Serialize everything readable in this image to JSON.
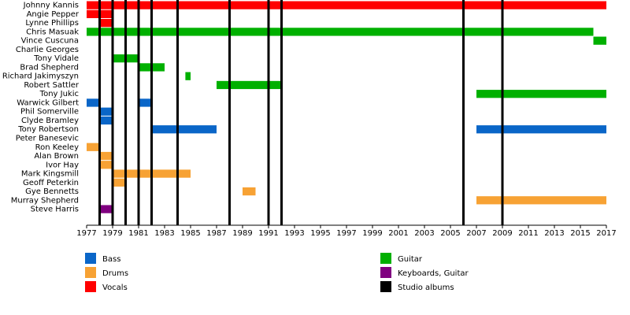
{
  "chart_data": {
    "type": "timeline",
    "categories": [
      "Johnny Kannis",
      "Angie Pepper",
      "Lynne Phillips",
      "Chris Masuak",
      "Vince Cuscuna",
      "Charlie Georges",
      "Tony Vidale",
      "Brad Shepherd",
      "Richard Jakimyszyn",
      "Robert Sattler",
      "Tony Jukic",
      "Warwick Gilbert",
      "Phil Somerville",
      "Clyde Bramley",
      "Tony Robertson",
      "Peter Banesevic",
      "Ron Keeley",
      "Alan Brown",
      "Ivor Hay",
      "Mark Kingsmill",
      "Geoff Peterkin",
      "Gye Bennetts",
      "Murray Shepherd",
      "Steve Harris"
    ],
    "series": [
      {
        "name": "Bass",
        "color": "#0a66c8",
        "values": [
          null,
          null,
          null,
          null,
          null,
          null,
          null,
          null,
          null,
          null,
          null,
          [
            [
              1977,
              1978
            ],
            [
              1981,
              1982
            ]
          ],
          [
            [
              1978,
              1979
            ]
          ],
          [
            [
              1978,
              1979
            ]
          ],
          [
            [
              1982,
              1987
            ],
            [
              2007,
              2017
            ]
          ],
          null,
          null,
          null,
          null,
          null,
          null,
          null,
          null,
          null
        ]
      },
      {
        "name": "Drums",
        "color": "#f7a234",
        "values": [
          null,
          null,
          null,
          null,
          null,
          null,
          null,
          null,
          null,
          null,
          null,
          null,
          null,
          null,
          null,
          null,
          [
            [
              1977,
              1978
            ]
          ],
          [
            [
              1978,
              1979
            ]
          ],
          [
            [
              1978,
              1979
            ]
          ],
          [
            [
              1979,
              1985
            ]
          ],
          [
            [
              1979,
              1980
            ]
          ],
          [
            [
              1989,
              1990
            ]
          ],
          [
            [
              2007,
              2017
            ]
          ],
          null
        ]
      },
      {
        "name": "Vocals",
        "color": "#ff0000",
        "values": [
          [
            [
              1977,
              2017
            ]
          ],
          [
            [
              1977,
              1979
            ]
          ],
          [
            [
              1978,
              1979
            ]
          ],
          null,
          null,
          null,
          null,
          null,
          null,
          null,
          null,
          null,
          null,
          null,
          null,
          null,
          null,
          null,
          null,
          null,
          null,
          null,
          null,
          null
        ]
      },
      {
        "name": "Guitar",
        "color": "#00b000",
        "values": [
          null,
          null,
          null,
          [
            [
              1977,
              2016
            ]
          ],
          [
            [
              2016,
              2017
            ]
          ],
          null,
          [
            [
              1979,
              1981
            ]
          ],
          [
            [
              1981,
              1983
            ]
          ],
          [
            [
              1984.6,
              1985
            ]
          ],
          [
            [
              1987,
              1992
            ]
          ],
          [
            [
              2007,
              2017
            ]
          ],
          null,
          null,
          null,
          null,
          null,
          null,
          null,
          null,
          null,
          null,
          null,
          null,
          null
        ]
      },
      {
        "name": "Keyboards, Guitar",
        "color": "#800080",
        "values": [
          null,
          null,
          null,
          null,
          null,
          null,
          null,
          null,
          null,
          null,
          null,
          null,
          null,
          null,
          null,
          null,
          null,
          null,
          null,
          null,
          null,
          null,
          null,
          [
            [
              1978,
              1979
            ]
          ]
        ]
      }
    ],
    "albums": {
      "name": "Studio albums",
      "color": "#000000",
      "values": [
        1978,
        1979,
        1980,
        1981,
        1982,
        1984,
        1988,
        1991,
        1992,
        2006,
        2009
      ]
    },
    "xlim": [
      1977,
      2017
    ],
    "xticks": [
      1977,
      1979,
      1981,
      1983,
      1985,
      1987,
      1989,
      1991,
      1993,
      1995,
      1997,
      1999,
      2001,
      2003,
      2005,
      2007,
      2009,
      2011,
      2013,
      2015,
      2017
    ]
  }
}
